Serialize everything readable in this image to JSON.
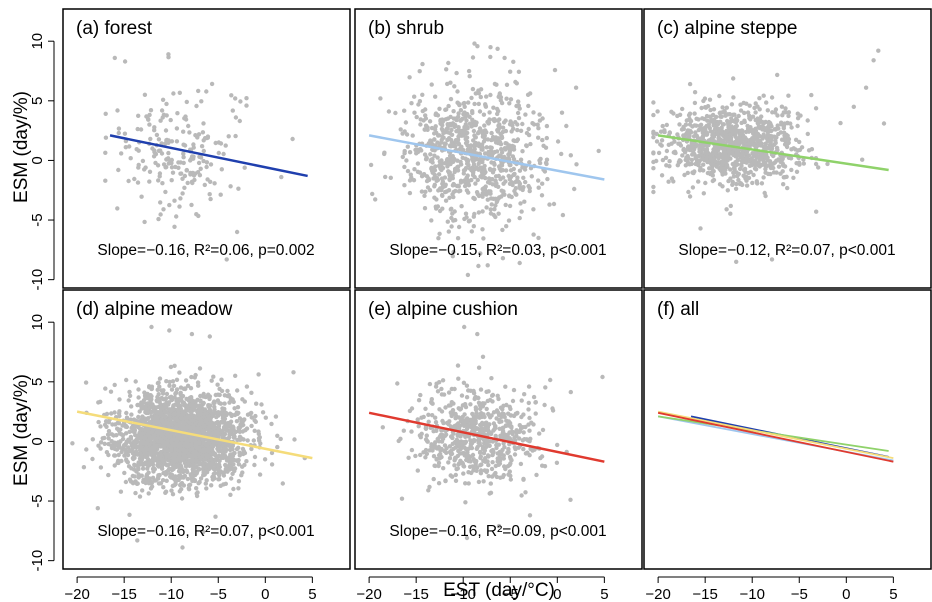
{
  "chart_data": {
    "type": "scatter",
    "xlabel": "EST (day/°C)",
    "ylabel": "ESM (day/%)",
    "xlim": [
      -21.5,
      9
    ],
    "ylim": [
      -10.7,
      12.7
    ],
    "xticks": [
      -20,
      -15,
      -10,
      -5,
      0,
      5
    ],
    "yticks": [
      -10,
      -5,
      0,
      5,
      10
    ],
    "grid": false,
    "point_color": "#b9b9b9",
    "panels": [
      {
        "id": "forest",
        "title": "(a)  forest",
        "stat_text": "Slope=−0.16, R²=0.06, p=0.002",
        "fit_color": "#1f3fae",
        "fit_line": {
          "x": [
            -16.5,
            4.5
          ],
          "y": [
            2.1,
            -1.3
          ]
        },
        "cloud": {
          "count": 200,
          "x_center": -9,
          "x_sd": 3.2,
          "x_min": -17,
          "x_max": 4,
          "y_center": 0.5,
          "y_sd": 2.5,
          "y_min": -8.5,
          "y_max": 9.5
        },
        "points": [
          [
            -16.0,
            8.6
          ],
          [
            -14.9,
            8.3
          ],
          [
            -10.3,
            8.9
          ],
          [
            -12.8,
            5.5
          ],
          [
            -3.2,
            5.2
          ],
          [
            -2.0,
            4.6
          ],
          [
            2.9,
            1.8
          ],
          [
            1.7,
            -1.4
          ],
          [
            -3.0,
            -6.0
          ],
          [
            -4.1,
            -8.3
          ],
          [
            -13.5,
            -0.6
          ],
          [
            -12.0,
            1.0
          ],
          [
            -10.9,
            3.6
          ],
          [
            -9.4,
            1.6
          ],
          [
            -8.6,
            -2.3
          ],
          [
            -7.0,
            0.3
          ],
          [
            -6.1,
            2.0
          ]
        ]
      },
      {
        "id": "shrub",
        "title": "(b)  shrub",
        "stat_text": "Slope=−0.15, R²=0.03, p<0.001",
        "fit_color": "#9fc6ee",
        "fit_line": {
          "x": [
            -20,
            5
          ],
          "y": [
            2.1,
            -1.6
          ]
        },
        "cloud": {
          "count": 850,
          "x_center": -9,
          "x_sd": 3.8,
          "x_min": -20.5,
          "x_max": 5,
          "y_center": 0.5,
          "y_sd": 2.9,
          "y_min": -9.6,
          "y_max": 10
        },
        "points": [
          [
            -8.8,
            9.8
          ],
          [
            -7.1,
            9.5
          ],
          [
            -5.6,
            8.6
          ],
          [
            -3.1,
            5.5
          ],
          [
            0.5,
            4.0
          ],
          [
            2.0,
            6.1
          ],
          [
            -18.8,
            5.2
          ],
          [
            -17.9,
            4.1
          ],
          [
            -9.5,
            -9.6
          ],
          [
            -7.4,
            -8.8
          ],
          [
            -4.0,
            -8.6
          ],
          [
            -2.0,
            -6.5
          ],
          [
            1.8,
            -2.4
          ],
          [
            4.4,
            0.8
          ],
          [
            -10.5,
            2.0
          ],
          [
            -8.0,
            -1.0
          ],
          [
            -6.5,
            1.5
          ],
          [
            -11.5,
            -2.5
          ],
          [
            -12.4,
            3.4
          ],
          [
            -5.1,
            -3.0
          ]
        ]
      },
      {
        "id": "alpine-steppe",
        "title": "(c)  alpine steppe",
        "stat_text": "Slope=−0.12, R²=0.07, p<0.001",
        "fit_color": "#8fd26a",
        "fit_line": {
          "x": [
            -20,
            4.5
          ],
          "y": [
            2.1,
            -0.8
          ]
        },
        "cloud": {
          "count": 1000,
          "x_center": -12,
          "x_sd": 3.6,
          "x_min": -20.5,
          "x_max": 5,
          "y_center": 1.2,
          "y_sd": 1.6,
          "y_min": -7,
          "y_max": 9
        },
        "points": [
          [
            3.4,
            9.2
          ],
          [
            2.9,
            8.4
          ],
          [
            2.1,
            6.1
          ],
          [
            0.8,
            4.5
          ],
          [
            4.0,
            3.1
          ],
          [
            -16.6,
            6.4
          ],
          [
            -13.5,
            5.4
          ],
          [
            -7.9,
            -8.3
          ],
          [
            -11.7,
            -8.5
          ],
          [
            -15.5,
            -5.7
          ],
          [
            -3.2,
            -4.3
          ],
          [
            -10.1,
            1.4
          ],
          [
            -12.5,
            0.9
          ],
          [
            -14.2,
            1.7
          ],
          [
            -9.0,
            0.3
          ],
          [
            -6.5,
            -0.5
          ]
        ]
      },
      {
        "id": "alpine-meadow",
        "title": "(d)  alpine meadow",
        "stat_text": "Slope=−0.16, R²=0.07, p<0.001",
        "fit_color": "#f5dc7a",
        "fit_line": {
          "x": [
            -20,
            5
          ],
          "y": [
            2.5,
            -1.4
          ]
        },
        "cloud": {
          "count": 2300,
          "x_center": -9,
          "x_sd": 3.4,
          "x_min": -20.5,
          "x_max": 5,
          "y_center": 0.3,
          "y_sd": 1.9,
          "y_min": -9.5,
          "y_max": 10
        },
        "points": [
          [
            -12.1,
            9.6
          ],
          [
            -10.2,
            9.3
          ],
          [
            -7.8,
            9.0
          ],
          [
            -5.9,
            8.8
          ],
          [
            -3.2,
            5.5
          ],
          [
            3.0,
            5.8
          ],
          [
            4.2,
            -1.4
          ],
          [
            -13.6,
            -8.3
          ],
          [
            -8.8,
            -8.9
          ],
          [
            -6.6,
            -7.6
          ],
          [
            -17.8,
            -5.6
          ],
          [
            -19.0,
            2.4
          ]
        ]
      },
      {
        "id": "alpine-cushion",
        "title": "(e)  alpine cushion",
        "stat_text": "Slope=−0.16, R²=0.09, p<0.001",
        "fit_color": "#e03a2f",
        "fit_line": {
          "x": [
            -20,
            5
          ],
          "y": [
            2.4,
            -1.7
          ]
        },
        "cloud": {
          "count": 650,
          "x_center": -8.5,
          "x_sd": 3.4,
          "x_min": -20.5,
          "x_max": 5.5,
          "y_center": 0.5,
          "y_sd": 1.9,
          "y_min": -9.5,
          "y_max": 10
        },
        "points": [
          [
            -9.9,
            9.6
          ],
          [
            -8.5,
            9.0
          ],
          [
            -7.9,
            7.1
          ],
          [
            -7.0,
            5.3
          ],
          [
            -3.0,
            4.6
          ],
          [
            4.8,
            5.4
          ],
          [
            -9.6,
            -8.1
          ],
          [
            -6.2,
            -7.1
          ],
          [
            -2.9,
            -6.2
          ],
          [
            1.4,
            -4.9
          ],
          [
            -16.5,
            -4.8
          ]
        ]
      },
      {
        "id": "all",
        "title": "(f)  all",
        "stat_text": "",
        "fit_lines": [
          {
            "x": [
              -16.5,
              4.5
            ],
            "y": [
              2.1,
              -1.3
            ],
            "color": "#1f3fae"
          },
          {
            "x": [
              -20,
              5
            ],
            "y": [
              2.1,
              -1.6
            ],
            "color": "#9fc6ee"
          },
          {
            "x": [
              -20,
              4.5
            ],
            "y": [
              2.1,
              -0.8
            ],
            "color": "#8fd26a"
          },
          {
            "x": [
              -20,
              5
            ],
            "y": [
              2.5,
              -1.4
            ],
            "color": "#f5dc7a"
          },
          {
            "x": [
              -20,
              5
            ],
            "y": [
              2.4,
              -1.7
            ],
            "color": "#e03a2f"
          }
        ]
      }
    ]
  }
}
